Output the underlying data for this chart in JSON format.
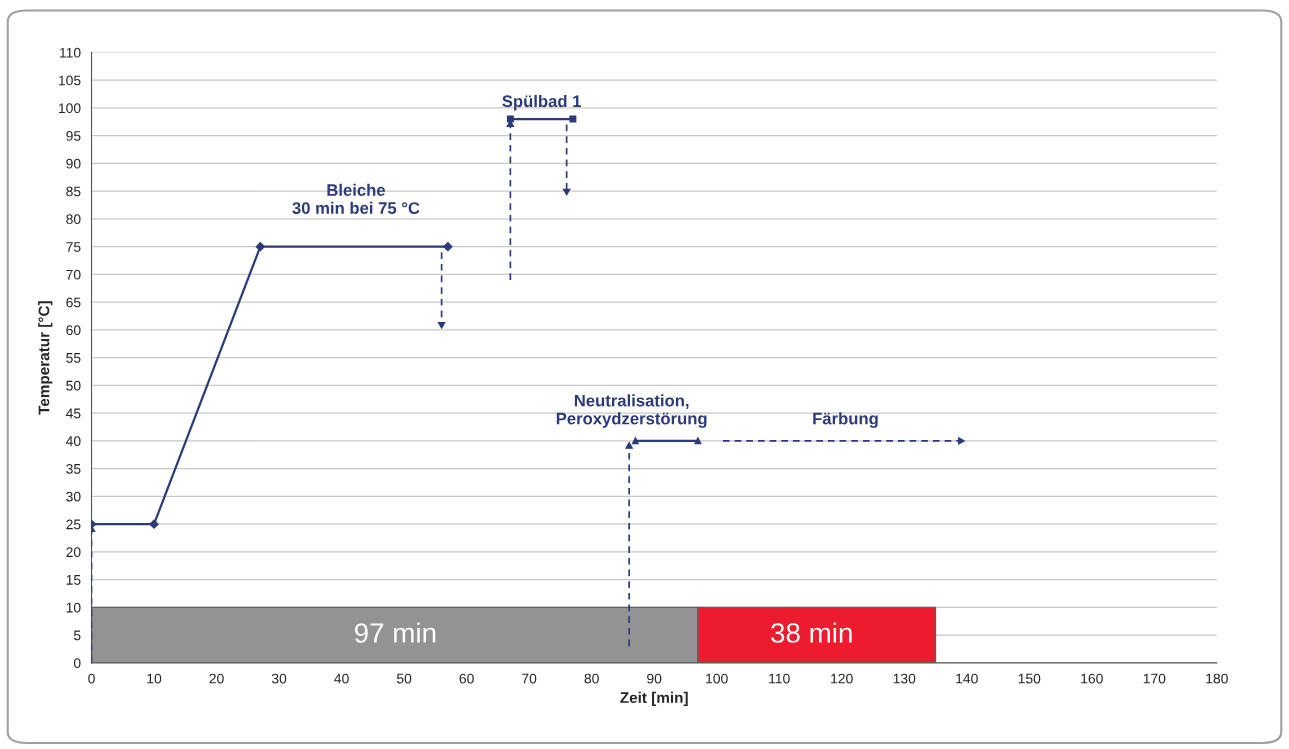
{
  "chart_data": {
    "type": "line",
    "xlabel": "Zeit [min]",
    "ylabel": "Temperatur [°C]",
    "xlim": [
      0,
      180
    ],
    "xticks": [
      0,
      10,
      20,
      30,
      40,
      50,
      60,
      70,
      80,
      90,
      100,
      110,
      120,
      130,
      140,
      150,
      160,
      170,
      180
    ],
    "ylim": [
      0,
      110
    ],
    "yticks": [
      0,
      5,
      10,
      15,
      20,
      25,
      30,
      35,
      40,
      45,
      50,
      55,
      60,
      65,
      70,
      75,
      80,
      85,
      90,
      95,
      100,
      105,
      110
    ],
    "grid": "y",
    "legend": false,
    "series": [
      {
        "color": "#2b3a78",
        "x": [
          0,
          10,
          27,
          57
        ],
        "values": [
          25,
          25,
          75,
          75
        ],
        "marker": "diamond",
        "line_style": "solid"
      },
      {
        "color": "#2b3a78",
        "x": [
          67,
          77
        ],
        "values": [
          98,
          98
        ],
        "marker": "square",
        "line_style": "solid"
      },
      {
        "color": "#2b3a78",
        "x": [
          87,
          97
        ],
        "values": [
          40,
          40
        ],
        "marker": "triangle",
        "line_style": "solid"
      },
      {
        "color": "#2b3a78",
        "x": [
          0,
          0
        ],
        "values": [
          0,
          24
        ],
        "marker": "triangle",
        "line_style": "dashed"
      },
      {
        "color": "#2b3a78",
        "x": [
          56,
          56
        ],
        "values": [
          74,
          61
        ],
        "marker": "triangle",
        "line_style": "dashed"
      },
      {
        "color": "#2b3a78",
        "x": [
          67,
          67
        ],
        "values": [
          69,
          97
        ],
        "marker": "triangle",
        "line_style": "dashed"
      },
      {
        "color": "#2b3a78",
        "x": [
          76,
          76
        ],
        "values": [
          97,
          85
        ],
        "marker": "triangle",
        "line_style": "dashed"
      },
      {
        "color": "#2b3a78",
        "x": [
          86,
          86
        ],
        "values": [
          3,
          39
        ],
        "marker": "triangle",
        "line_style": "dashed"
      },
      {
        "color": "#2b3a78",
        "x": [
          101,
          139
        ],
        "values": [
          40,
          40
        ],
        "marker": "triangle",
        "line_style": "dashed"
      },
      {
        "type": "area",
        "color": "#939393",
        "x": [
          0,
          97
        ],
        "values": [
          10,
          10
        ]
      },
      {
        "type": "area",
        "color": "#ec1c2e",
        "x": [
          97,
          135
        ],
        "values": [
          10,
          10
        ]
      }
    ],
    "annotations": [
      "Bleiche\n30 min bei 75 °C",
      "Spülbad 1",
      "Neutralisation,\nPeroxydzerstörung",
      "Färbung",
      "97 min",
      "38 min"
    ]
  }
}
